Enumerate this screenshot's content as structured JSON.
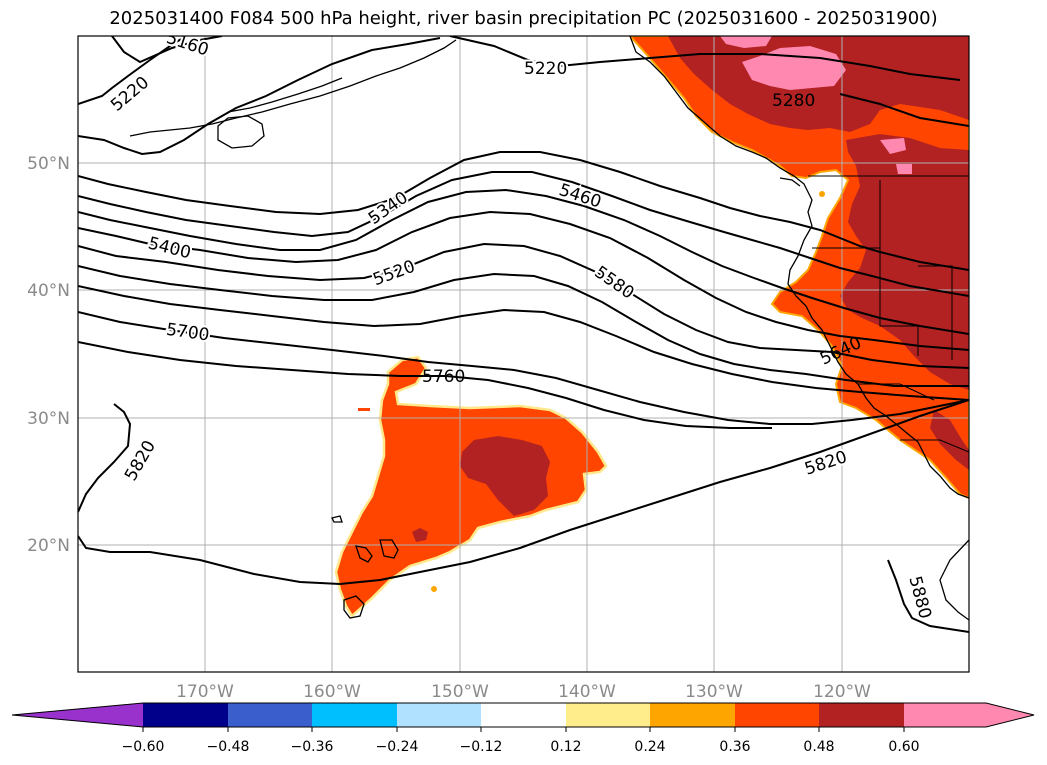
{
  "title": "2025031400 F084 500 hPa height, river basin precipitation PC (2025031600 - 2025031900)",
  "colors": {
    "level_036": "#ff4500",
    "level_048": "#b22222",
    "level_060": "#ff88b0",
    "edge_024": "#ffa500",
    "edge_012": "#ffe88a",
    "grid": "#b0b0b0",
    "contour": "#000000"
  },
  "lat_labels": [
    "50°N",
    "40°N",
    "30°N",
    "20°N"
  ],
  "lon_labels": [
    "170°W",
    "160°W",
    "150°W",
    "140°W",
    "130°W",
    "120°W"
  ],
  "contour_labels": [
    {
      "id": "c5160",
      "text": "5160"
    },
    {
      "id": "c5220a",
      "text": "5220"
    },
    {
      "id": "c5220b",
      "text": "5220"
    },
    {
      "id": "c5280",
      "text": "5280"
    },
    {
      "id": "c5340",
      "text": "5340"
    },
    {
      "id": "c5460",
      "text": "5460"
    },
    {
      "id": "c5400",
      "text": "5400"
    },
    {
      "id": "c5520",
      "text": "5520"
    },
    {
      "id": "c5580",
      "text": "5580"
    },
    {
      "id": "c5640",
      "text": "5640"
    },
    {
      "id": "c5700",
      "text": "5700"
    },
    {
      "id": "c5760",
      "text": "5760"
    },
    {
      "id": "c5820a",
      "text": "5820"
    },
    {
      "id": "c5820b",
      "text": "5820"
    },
    {
      "id": "c5880",
      "text": "5880"
    }
  ],
  "colorbar": {
    "colors": [
      "#9932cc",
      "#00008b",
      "#3a5fcd",
      "#00bfff",
      "#b0e2ff",
      "#ffffff",
      "#ffec8b",
      "#ffa500",
      "#ff4500",
      "#b22222",
      "#ff88b0"
    ],
    "ticks": [
      "−0.60",
      "−0.48",
      "−0.36",
      "−0.24",
      "−0.12",
      "0.12",
      "0.24",
      "0.36",
      "0.48",
      "0.60"
    ]
  }
}
